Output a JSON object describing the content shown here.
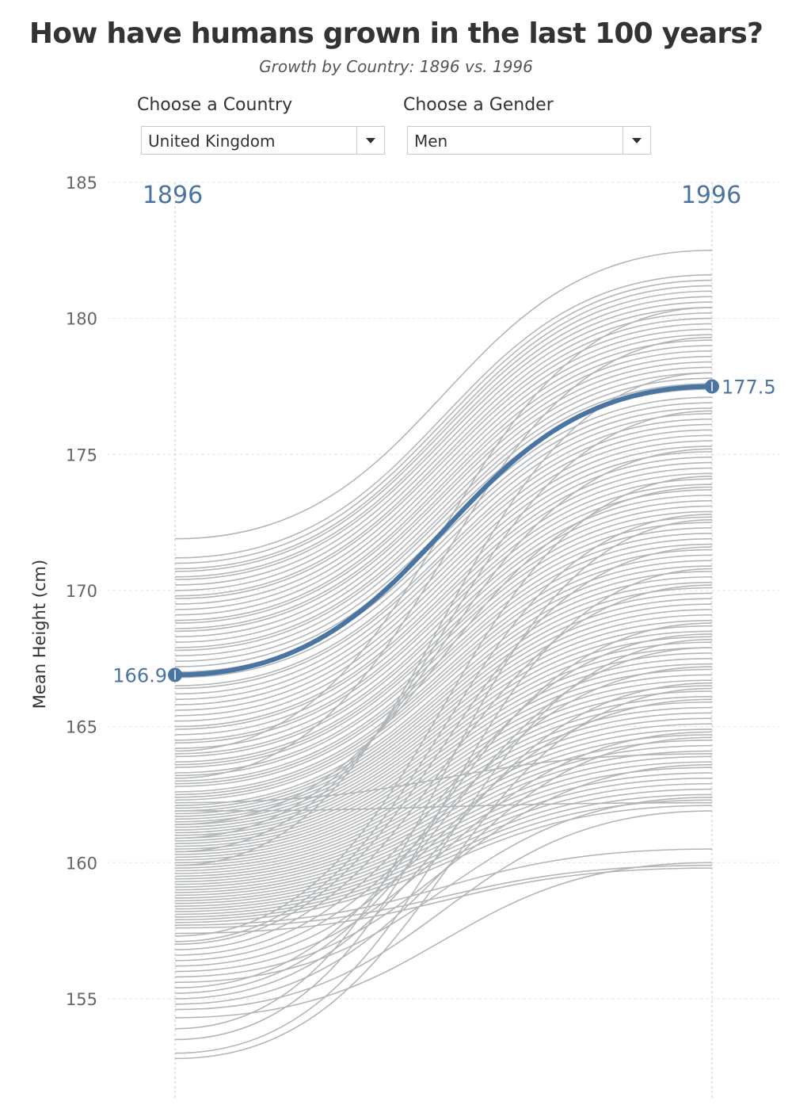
{
  "header": {
    "title": "How have humans grown in the last 100 years?",
    "subtitle": "Growth by Country: 1896 vs. 1996"
  },
  "filters": {
    "country": {
      "label": "Choose a Country",
      "value": "United Kingdom"
    },
    "gender": {
      "label": "Choose a Gender",
      "value": "Men"
    }
  },
  "colors": {
    "highlight": "#4a75a3",
    "background_lines": "#b3b6b8",
    "gridline": "#e6e6e6",
    "year_line": "#cccccc"
  },
  "chart_data": {
    "type": "line",
    "x": [
      "1896",
      "1996"
    ],
    "ylabel": "Mean Height (cm)",
    "ylim": [
      152.5,
      185
    ],
    "yticks": [
      155,
      160,
      165,
      170,
      175,
      180,
      185
    ],
    "grid": true,
    "highlight": {
      "name": "United Kingdom",
      "values": [
        166.9,
        177.5
      ],
      "labels": [
        "166.9",
        "177.5"
      ]
    },
    "series_1896": [
      171.9,
      171.2,
      171.0,
      170.8,
      170.7,
      170.5,
      170.4,
      170.2,
      170.0,
      169.8,
      169.7,
      169.5,
      169.3,
      169.1,
      168.9,
      168.8,
      168.6,
      168.5,
      168.3,
      168.1,
      167.9,
      167.8,
      167.6,
      167.4,
      167.2,
      167.0,
      166.8,
      166.5,
      166.4,
      166.2,
      166.0,
      165.8,
      165.6,
      165.4,
      165.2,
      165.0,
      164.9,
      164.7,
      164.5,
      164.4,
      164.2,
      164.0,
      163.9,
      163.7,
      163.6,
      163.5,
      163.3,
      163.2,
      163.0,
      162.9,
      162.8,
      162.6,
      162.5,
      162.4,
      162.3,
      162.1,
      162.0,
      161.9,
      161.8,
      161.7,
      161.6,
      161.5,
      161.4,
      161.3,
      161.2,
      161.1,
      161.0,
      160.9,
      160.8,
      160.7,
      160.6,
      160.5,
      160.4,
      160.3,
      160.2,
      160.1,
      160.0,
      159.9,
      159.8,
      159.7,
      159.6,
      159.5,
      159.4,
      159.3,
      159.2,
      159.1,
      159.0,
      158.9,
      158.8,
      158.7,
      158.6,
      158.5,
      158.4,
      158.3,
      158.2,
      158.1,
      158.0,
      157.9,
      157.8,
      157.7,
      157.6,
      157.4,
      157.3,
      157.1,
      157.0,
      156.8,
      156.6,
      156.4,
      156.2,
      156.0,
      155.8,
      155.6,
      155.4,
      155.2,
      155.0,
      154.8,
      154.6,
      154.3,
      153.9,
      153.5,
      153.0,
      152.8,
      162.2,
      161.9,
      161.4,
      160.9,
      160.4,
      159.9,
      163.1,
      164.1,
      165.3,
      166.7,
      168.0,
      169.4
    ],
    "series_1996": [
      182.5,
      181.6,
      181.4,
      181.2,
      181.0,
      180.8,
      180.6,
      180.4,
      180.2,
      180.0,
      179.8,
      179.6,
      179.4,
      179.2,
      179.0,
      178.8,
      178.6,
      178.4,
      178.2,
      178.0,
      177.8,
      177.6,
      177.4,
      177.1,
      176.9,
      176.7,
      176.5,
      176.3,
      176.1,
      175.9,
      175.7,
      175.5,
      175.3,
      175.1,
      174.9,
      174.7,
      174.5,
      174.3,
      174.1,
      173.9,
      173.7,
      173.5,
      173.3,
      173.1,
      172.9,
      172.7,
      172.5,
      172.3,
      172.1,
      171.9,
      171.7,
      171.5,
      171.3,
      171.1,
      170.9,
      170.7,
      170.5,
      170.3,
      170.1,
      169.9,
      169.7,
      169.5,
      169.3,
      169.1,
      168.9,
      168.7,
      168.5,
      168.3,
      168.1,
      167.9,
      167.7,
      167.5,
      167.3,
      167.1,
      166.9,
      166.7,
      166.5,
      166.3,
      166.1,
      165.9,
      165.7,
      165.5,
      165.3,
      165.1,
      164.9,
      164.7,
      164.5,
      164.3,
      164.1,
      163.9,
      163.7,
      163.5,
      163.3,
      163.1,
      162.9,
      162.7,
      162.5,
      162.3,
      162.1,
      160.5,
      159.9,
      159.8,
      174.2,
      172.8,
      171.6,
      170.2,
      168.4,
      167.2,
      166.0,
      164.8,
      163.6,
      162.4,
      168.8,
      167.9,
      166.6,
      164.6,
      161.9,
      160.0,
      172.6,
      170.8,
      168.2,
      166.4,
      164.0,
      162.2,
      173.8,
      175.2,
      176.6,
      178.0,
      179.3,
      180.4
    ]
  }
}
